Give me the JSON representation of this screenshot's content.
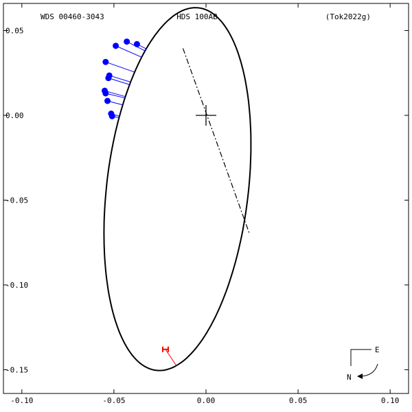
{
  "chart_data": {
    "type": "scatter",
    "header": {
      "left": "WDS 00460-3043",
      "center": "HDS 100AB",
      "right": "(Tok2022g)"
    },
    "xlim": [
      -0.11,
      0.11
    ],
    "ylim": [
      -0.164,
      0.066
    ],
    "x_ticks": [
      -0.1,
      -0.05,
      0.0,
      0.05,
      0.1
    ],
    "x_tick_labels": [
      "-0.10",
      "-0.05",
      "0.00",
      "0.05",
      "0.10"
    ],
    "y_ticks": [
      0.05,
      0.0,
      -0.05,
      -0.1,
      -0.15
    ],
    "y_tick_labels": [
      "0.05",
      "0.00",
      "-0.05",
      "-0.10",
      "-0.15"
    ],
    "orbit": {
      "center": [
        -0.0155,
        -0.0435
      ],
      "semi_major": 0.1075,
      "semi_minor": 0.0385,
      "major_axis_angle_deg": 84,
      "color": "#000000"
    },
    "line_of_nodes": {
      "points": [
        [
          -0.0125,
          0.0395
        ],
        [
          0.0235,
          -0.0695
        ]
      ],
      "style": "dash-dot"
    },
    "primary": {
      "x": 0.0,
      "y": 0.0,
      "marker": "cross"
    },
    "observations_blue": {
      "color": "#0000ff",
      "points": [
        {
          "x": -0.0545,
          "y": 0.0315
        },
        {
          "x": -0.0525,
          "y": 0.0235
        },
        {
          "x": -0.053,
          "y": 0.022
        },
        {
          "x": -0.055,
          "y": 0.0145
        },
        {
          "x": -0.0545,
          "y": 0.013
        },
        {
          "x": -0.0535,
          "y": 0.0085
        },
        {
          "x": -0.0515,
          "y": 0.001
        },
        {
          "x": -0.051,
          "y": -0.0005
        },
        {
          "x": -0.049,
          "y": 0.041
        },
        {
          "x": -0.043,
          "y": 0.0435
        },
        {
          "x": -0.0375,
          "y": 0.042
        }
      ]
    },
    "observations_red": {
      "color": "#ff0000",
      "points": [
        {
          "x": -0.022,
          "y": -0.138
        }
      ]
    },
    "compass": {
      "east": "E",
      "north": "N"
    }
  }
}
